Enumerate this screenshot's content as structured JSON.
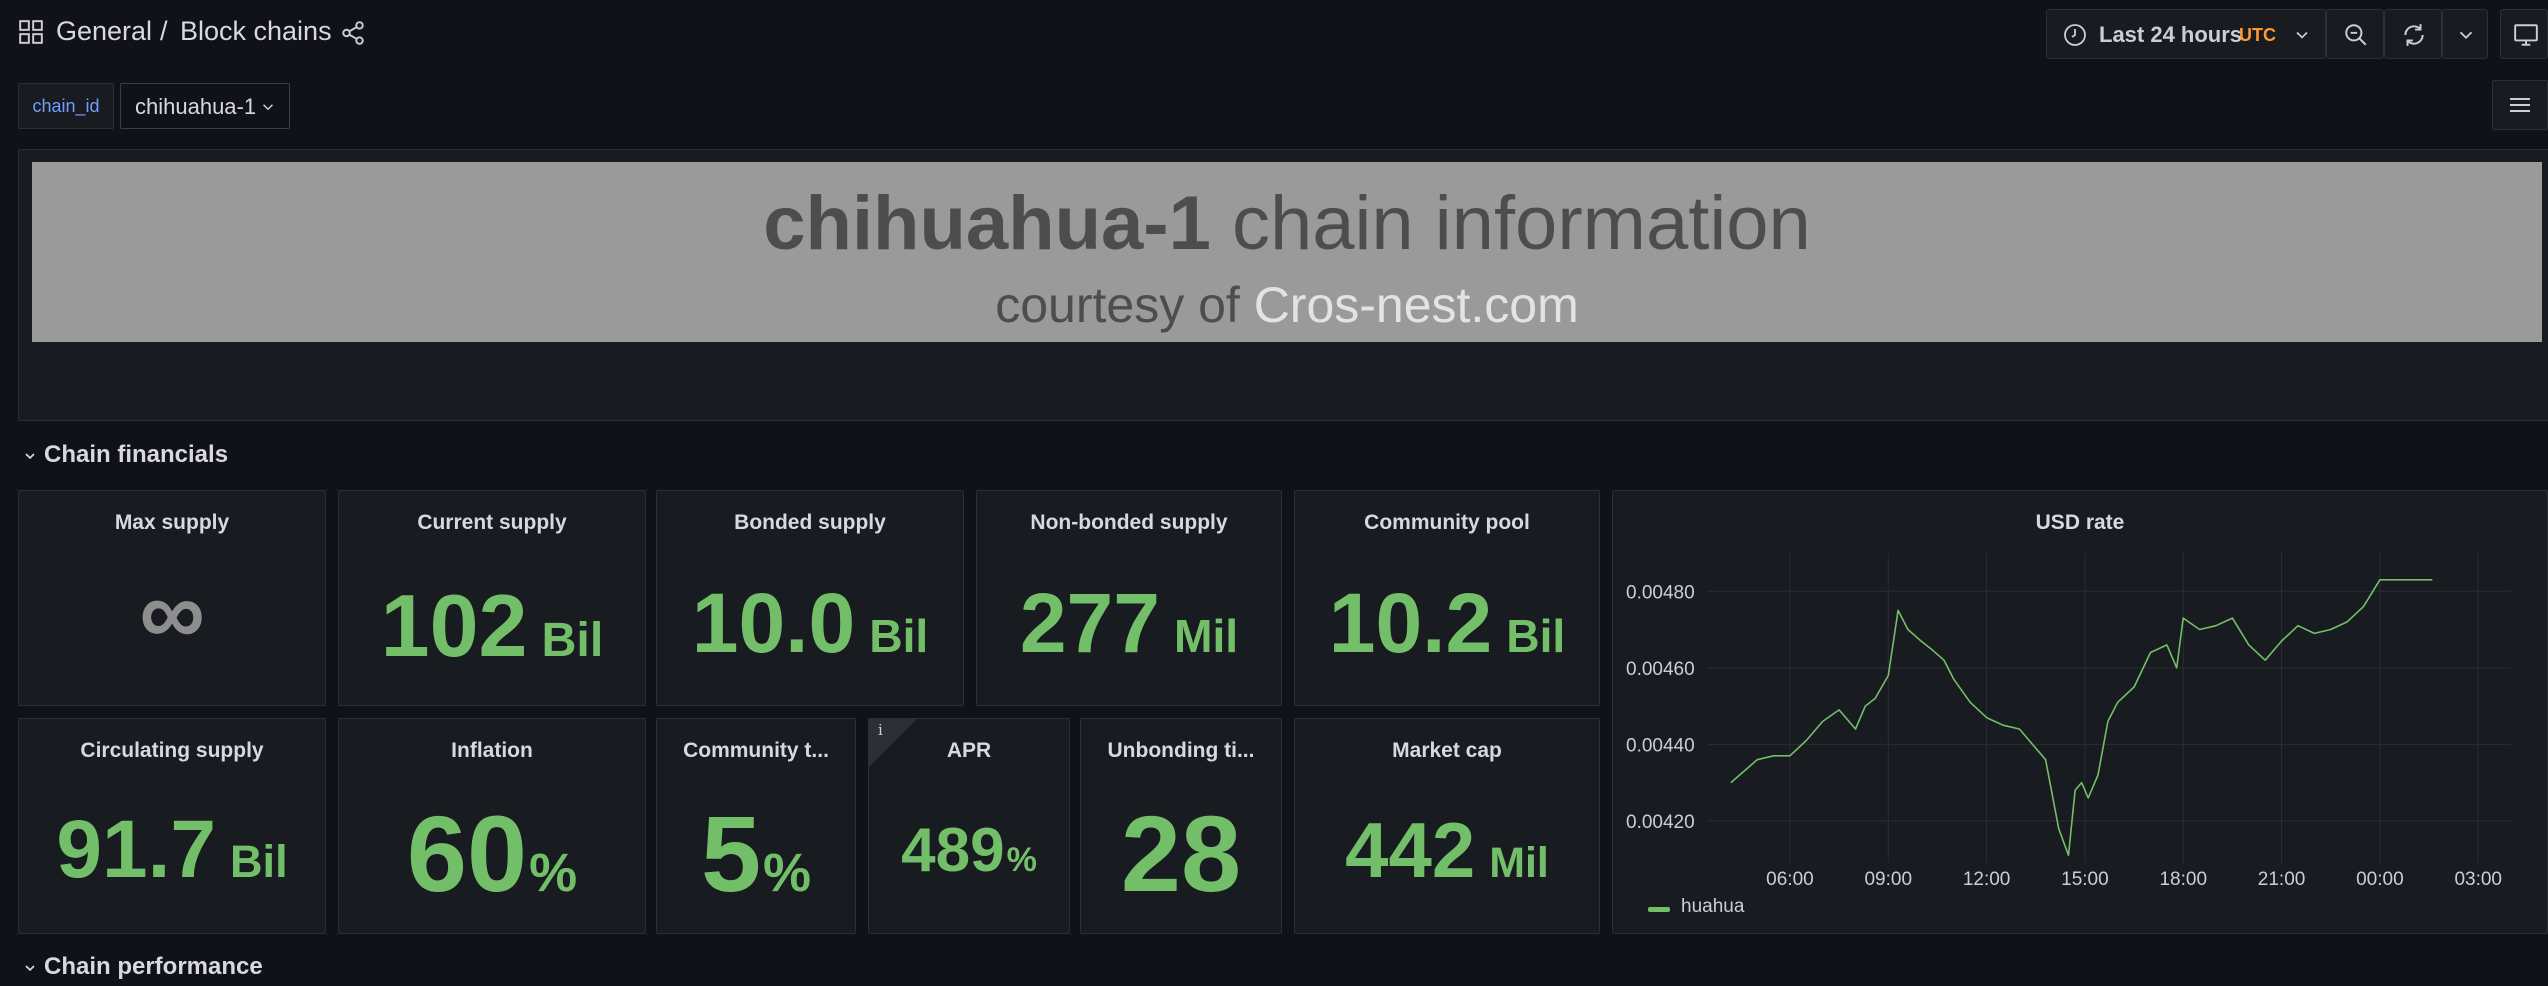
{
  "nav": {
    "folder": "General",
    "separator": "/",
    "dashboard": "Block chains",
    "time_range": "Last 24 hours",
    "timezone": "UTC"
  },
  "variables": {
    "label": "chain_id",
    "value": "chihuahua-1"
  },
  "banner": {
    "title_bold": "chihuahua-1",
    "title_rest": " chain information",
    "sub_prefix": "courtesy of ",
    "sub_link": "Cros-nest.com"
  },
  "rows": {
    "financials": "Chain financials",
    "performance": "Chain performance"
  },
  "stats": {
    "max_supply": {
      "title": "Max supply",
      "value": "∞"
    },
    "current_supply": {
      "title": "Current supply",
      "value": "102",
      "unit": "Bil"
    },
    "bonded_supply": {
      "title": "Bonded supply",
      "value": "10.0",
      "unit": "Bil"
    },
    "non_bonded_supply": {
      "title": "Non-bonded supply",
      "value": "277",
      "unit": "Mil"
    },
    "community_pool": {
      "title": "Community pool",
      "value": "10.2",
      "unit": "Bil"
    },
    "circulating_supply": {
      "title": "Circulating supply",
      "value": "91.7",
      "unit": "Bil"
    },
    "inflation": {
      "title": "Inflation",
      "value": "60",
      "unit": "%"
    },
    "community_tax": {
      "title": "Community t...",
      "value": "5",
      "unit": "%"
    },
    "apr": {
      "title": "APR",
      "info": "i",
      "value": "489",
      "unit": "%"
    },
    "unbonding_time": {
      "title": "Unbonding ti...",
      "value": "28"
    },
    "market_cap": {
      "title": "Market cap",
      "value": "442",
      "unit": "Mil"
    }
  },
  "colors": {
    "stat_green": "#73bf69",
    "accent_orange": "#ff9830",
    "variable_blue": "#6e9fff"
  },
  "chart_data": {
    "type": "line",
    "title": "USD rate",
    "xlabel": "",
    "ylabel": "",
    "x_ticks": [
      "06:00",
      "09:00",
      "12:00",
      "15:00",
      "18:00",
      "21:00",
      "00:00",
      "03:00"
    ],
    "y_ticks": [
      "0.00420",
      "0.00440",
      "0.00460",
      "0.00480"
    ],
    "ylim": [
      0.00409,
      0.0049
    ],
    "legend": "bottom-left",
    "grid": true,
    "series": [
      {
        "name": "huahua",
        "color": "#73bf69",
        "x": [
          4.2,
          4.6,
          5.0,
          5.5,
          6.0,
          6.5,
          7.0,
          7.5,
          8.0,
          8.3,
          8.6,
          9.0,
          9.3,
          9.6,
          10.0,
          10.3,
          10.7,
          11.0,
          11.5,
          12.0,
          12.5,
          13.0,
          13.4,
          13.8,
          14.2,
          14.5,
          14.7,
          14.9,
          15.1,
          15.4,
          15.7,
          16.0,
          16.5,
          17.0,
          17.5,
          17.8,
          18.0,
          18.5,
          19.0,
          19.5,
          20.0,
          20.5,
          21.0,
          21.5,
          22.0,
          22.5,
          23.0,
          23.5,
          24.0,
          24.5,
          25.0,
          25.6
        ],
        "y": [
          0.0043,
          0.00433,
          0.00436,
          0.00437,
          0.00437,
          0.00441,
          0.00446,
          0.00449,
          0.00444,
          0.0045,
          0.00452,
          0.00458,
          0.00475,
          0.0047,
          0.00467,
          0.00465,
          0.00462,
          0.00457,
          0.00451,
          0.00447,
          0.00445,
          0.00444,
          0.0044,
          0.00436,
          0.00418,
          0.00411,
          0.00428,
          0.0043,
          0.00426,
          0.00432,
          0.00446,
          0.00451,
          0.00455,
          0.00464,
          0.00466,
          0.0046,
          0.00473,
          0.0047,
          0.00471,
          0.00473,
          0.00466,
          0.00462,
          0.00467,
          0.00471,
          0.00469,
          0.0047,
          0.00472,
          0.00476,
          0.00483,
          0.00483,
          0.00483,
          0.00483
        ]
      }
    ]
  }
}
